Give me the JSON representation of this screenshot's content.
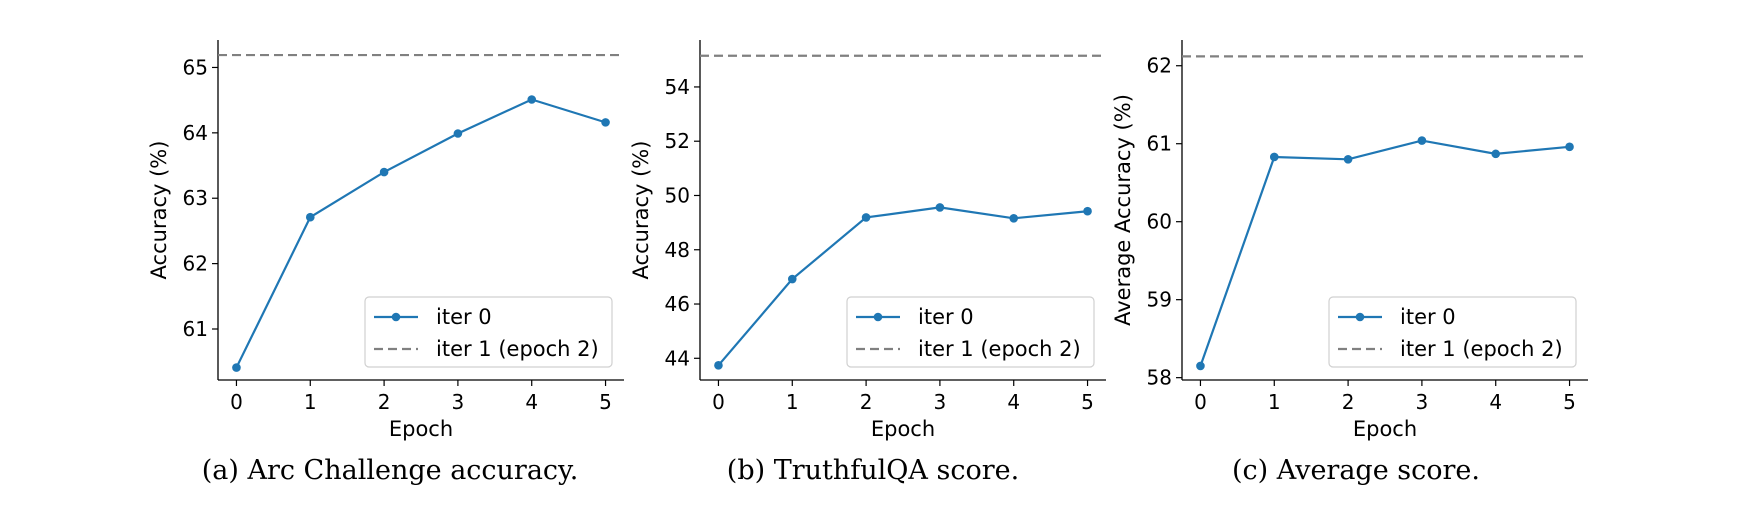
{
  "chart_data": [
    {
      "type": "line",
      "caption": "(a) Arc Challenge accuracy.",
      "xlabel": "Epoch",
      "ylabel": "Accuracy (%)",
      "x": [
        0,
        1,
        2,
        3,
        4,
        5
      ],
      "xticks": [
        "0",
        "1",
        "2",
        "3",
        "4",
        "5"
      ],
      "yticks": [
        "61",
        "62",
        "63",
        "64",
        "65"
      ],
      "xlim": [
        -0.25,
        5.25
      ],
      "ylim": [
        60.22,
        65.42
      ],
      "series": [
        {
          "name": "iter 0",
          "style": "solid-marker",
          "color": "#1f77b4",
          "values": [
            60.41,
            62.71,
            63.4,
            63.99,
            64.51,
            64.16
          ]
        },
        {
          "name": "iter 1 (epoch 2)",
          "style": "dashed",
          "color": "#808080",
          "value": 65.19
        }
      ],
      "legend": "lower-right",
      "grid": false
    },
    {
      "type": "line",
      "caption": "(b) TruthfulQA score.",
      "xlabel": "Epoch",
      "ylabel": "Accuracy (%)",
      "x": [
        0,
        1,
        2,
        3,
        4,
        5
      ],
      "xticks": [
        "0",
        "1",
        "2",
        "3",
        "4",
        "5"
      ],
      "yticks": [
        "44",
        "46",
        "48",
        "50",
        "52",
        "54"
      ],
      "xlim": [
        -0.25,
        5.25
      ],
      "ylim": [
        43.2,
        55.73
      ],
      "series": [
        {
          "name": "iter 0",
          "style": "solid-marker",
          "color": "#1f77b4",
          "values": [
            43.74,
            46.92,
            49.19,
            49.56,
            49.16,
            49.42
          ]
        },
        {
          "name": "iter 1 (epoch 2)",
          "style": "dashed",
          "color": "#808080",
          "value": 55.15
        }
      ],
      "legend": "lower-right",
      "grid": false
    },
    {
      "type": "line",
      "caption": "(c) Average score.",
      "xlabel": "Epoch",
      "ylabel": "Average Accuracy (%)",
      "x": [
        0,
        1,
        2,
        3,
        4,
        5
      ],
      "xticks": [
        "0",
        "1",
        "2",
        "3",
        "4",
        "5"
      ],
      "yticks": [
        "58",
        "59",
        "60",
        "61",
        "62"
      ],
      "xlim": [
        -0.25,
        5.25
      ],
      "ylim": [
        57.97,
        62.33
      ],
      "series": [
        {
          "name": "iter 0",
          "style": "solid-marker",
          "color": "#1f77b4",
          "values": [
            58.15,
            60.83,
            60.8,
            61.04,
            60.87,
            60.96
          ]
        },
        {
          "name": "iter 1 (epoch 2)",
          "style": "dashed",
          "color": "#808080",
          "value": 62.12
        }
      ],
      "legend": "lower-right",
      "grid": false
    }
  ]
}
